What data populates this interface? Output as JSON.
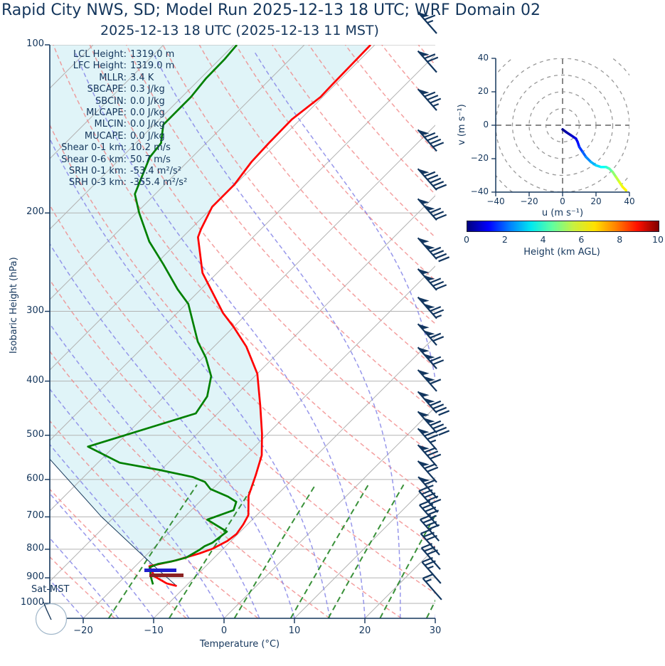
{
  "title": "Rapid City NWS, SD; Model Run 2025-12-13 18 UTC; WRF Domain 02",
  "subtitle": "2025-12-13 18 UTC  (2025-12-13 11 MST)",
  "colors": {
    "text": "#14365c",
    "axis": "#14365c",
    "temperature": "#ff0000",
    "dewpoint": "#008000",
    "parcel": "#1a3a5c",
    "cin_shade": "#e0f4f8",
    "isobar": "#b3b3b3",
    "isotherm": "#b3b3b3",
    "dry_adiabat": "#f08080",
    "moist_adiabat": "#8585e8",
    "mixing_ratio": "#2e8b2e",
    "wind_barb": "#12365f",
    "lcl_bar": "#2020cc",
    "lfc_bar": "#8b2121",
    "hodo_grid": "#999999",
    "circle_edge": "#9fb6c9"
  },
  "skewt": {
    "xlabel": "Temperature (°C)",
    "ylabel": "Isobaric Height (hPa)",
    "x_ticks": [
      -20,
      -10,
      0,
      10,
      20,
      30
    ],
    "pressure_ticks": [
      100,
      200,
      300,
      400,
      500,
      600,
      700,
      800,
      900,
      1000
    ],
    "surface_time_label": "Sat-MST"
  },
  "stats": [
    {
      "label": "LCL Height:",
      "value": "1319.0 m"
    },
    {
      "label": "LFC Height:",
      "value": "1319.0 m"
    },
    {
      "label": "MLLR:",
      "value": "3.4 K"
    },
    {
      "label": "SBCAPE:",
      "value": "0.3 J/kg"
    },
    {
      "label": "SBCIN:",
      "value": "0.0 J/kg"
    },
    {
      "label": "MLCAPE:",
      "value": "0.0 J/kg"
    },
    {
      "label": "MLCIN:",
      "value": "0.0 J/kg"
    },
    {
      "label": "MUCAPE:",
      "value": "0.0 J/kg"
    },
    {
      "label": "Shear 0-1 km:",
      "value": "10.2 m/s"
    },
    {
      "label": "Shear 0-6 km:",
      "value": "50.7 m/s"
    },
    {
      "label": "SRH 0-1 km:",
      "value": "-53.4 m²/s²"
    },
    {
      "label": "SRH 0-3 km:",
      "value": "-355.4 m²/s²"
    }
  ],
  "chart_data": {
    "type": "line",
    "chart_kind": "skew-T log-p sounding with hodograph inset",
    "pressure_axis_hpa": {
      "top": 100,
      "bottom": 1063,
      "ticks": [
        100,
        200,
        300,
        400,
        500,
        600,
        700,
        800,
        900,
        1000
      ]
    },
    "temperature_axis_c": {
      "min": -24.8,
      "max": 30,
      "ticks": [
        -20,
        -10,
        0,
        10,
        20,
        30
      ]
    },
    "temperature_profile_p_t": [
      [
        100,
        -60.6
      ],
      [
        118,
        -60.4
      ],
      [
        124,
        -60.3
      ],
      [
        136,
        -61.2
      ],
      [
        150,
        -61.1
      ],
      [
        162,
        -60.9
      ],
      [
        178,
        -60.1
      ],
      [
        195,
        -60.1
      ],
      [
        214,
        -58.5
      ],
      [
        221,
        -57.8
      ],
      [
        256,
        -52.1
      ],
      [
        302,
        -43.5
      ],
      [
        320,
        -40.0
      ],
      [
        347,
        -35.4
      ],
      [
        388,
        -30.0
      ],
      [
        442,
        -25.1
      ],
      [
        497,
        -20.8
      ],
      [
        543,
        -17.8
      ],
      [
        590,
        -15.8
      ],
      [
        642,
        -13.9
      ],
      [
        695,
        -11.2
      ],
      [
        722,
        -10.6
      ],
      [
        751,
        -10.2
      ],
      [
        773,
        -10.5
      ],
      [
        798,
        -11.5
      ],
      [
        814,
        -12.7
      ],
      [
        838,
        -15.1
      ],
      [
        851,
        -17.0
      ],
      [
        858,
        -18.0
      ],
      [
        895,
        -15.8
      ],
      [
        921,
        -13.1
      ],
      [
        931,
        -11.3
      ]
    ],
    "dewpoint_profile_p_t": [
      [
        100,
        -79.6
      ],
      [
        106,
        -79.3
      ],
      [
        115,
        -79.2
      ],
      [
        124,
        -78.7
      ],
      [
        139,
        -78.7
      ],
      [
        150,
        -76.4
      ],
      [
        159,
        -76.0
      ],
      [
        185,
        -72.9
      ],
      [
        200,
        -69.6
      ],
      [
        225,
        -64.1
      ],
      [
        247,
        -58.9
      ],
      [
        274,
        -53.3
      ],
      [
        291,
        -49.7
      ],
      [
        340,
        -43.0
      ],
      [
        363,
        -39.6
      ],
      [
        392,
        -36.2
      ],
      [
        426,
        -33.9
      ],
      [
        457,
        -33.1
      ],
      [
        524,
        -43.7
      ],
      [
        560,
        -36.9
      ],
      [
        577,
        -30.2
      ],
      [
        594,
        -24.5
      ],
      [
        606,
        -22.1
      ],
      [
        624,
        -20.3
      ],
      [
        644,
        -16.7
      ],
      [
        658,
        -14.8
      ],
      [
        681,
        -14.0
      ],
      [
        708,
        -16.4
      ],
      [
        744,
        -11.9
      ],
      [
        779,
        -12.4
      ],
      [
        790,
        -13.0
      ],
      [
        801,
        -13.2
      ],
      [
        828,
        -14.0
      ],
      [
        841,
        -15.5
      ],
      [
        850,
        -17.1
      ],
      [
        862,
        -17.8
      ],
      [
        900,
        -16.1
      ],
      [
        925,
        -14.9
      ]
    ],
    "parcel_profile_p_t": [
      [
        931,
        -11.3
      ],
      [
        858,
        -17.3
      ],
      [
        700,
        -31.8
      ],
      [
        493,
        -54.7
      ],
      [
        300,
        -83.6
      ],
      [
        200,
        -104.3
      ],
      [
        100,
        -134.6
      ]
    ],
    "level_markers": [
      {
        "name": "lcl-bar",
        "x1": 203,
        "x2": 248,
        "y": 799,
        "h": 5,
        "color_key": "lcl_bar"
      },
      {
        "name": "lfc-bar",
        "x1": 210,
        "x2": 258,
        "y": 806,
        "h": 5,
        "color_key": "lfc_bar"
      }
    ],
    "mixing_ratio_lines_g_kg": [
      1,
      2,
      4,
      7,
      10,
      16,
      24,
      32
    ],
    "wind_barbs": [
      {
        "p": 95,
        "flags": 1,
        "full": 1,
        "half": 1
      },
      {
        "p": 112,
        "flags": 1,
        "full": 2,
        "half": 0
      },
      {
        "p": 131,
        "flags": 1,
        "full": 3,
        "half": 1
      },
      {
        "p": 155,
        "flags": 1,
        "full": 4,
        "half": 0
      },
      {
        "p": 182,
        "flags": 1,
        "full": 5,
        "half": 0
      },
      {
        "p": 206,
        "flags": 2,
        "full": 3,
        "half": 0
      },
      {
        "p": 242,
        "flags": 2,
        "full": 4,
        "half": 0
      },
      {
        "p": 275,
        "flags": 2,
        "full": 3,
        "half": 0
      },
      {
        "p": 309,
        "flags": 2,
        "full": 2,
        "half": 1
      },
      {
        "p": 345,
        "flags": 2,
        "full": 2,
        "half": 0
      },
      {
        "p": 380,
        "flags": 2,
        "full": 2,
        "half": 0
      },
      {
        "p": 417,
        "flags": 2,
        "full": 1,
        "half": 0
      },
      {
        "p": 456,
        "flags": 2,
        "full": 4,
        "half": 0
      },
      {
        "p": 495,
        "flags": 2,
        "full": 4,
        "half": 0
      },
      {
        "p": 531,
        "flags": 1,
        "full": 2,
        "half": 1
      },
      {
        "p": 568,
        "flags": 1,
        "full": 3,
        "half": 0
      },
      {
        "p": 607,
        "flags": 1,
        "full": 2,
        "half": 0
      },
      {
        "p": 648,
        "flags": 1,
        "full": 1,
        "half": 1
      },
      {
        "p": 687,
        "flags": 0,
        "full": 5,
        "half": 0
      },
      {
        "p": 728,
        "flags": 0,
        "full": 4,
        "half": 1
      },
      {
        "p": 773,
        "flags": 0,
        "full": 4,
        "half": 0
      },
      {
        "p": 819,
        "flags": 0,
        "full": 3,
        "half": 0
      },
      {
        "p": 869,
        "flags": 0,
        "full": 3,
        "half": 0
      },
      {
        "p": 921,
        "flags": 0,
        "full": 2,
        "half": 1
      },
      {
        "p": 985,
        "flags": 0,
        "full": 1,
        "half": 1
      }
    ],
    "hodograph": {
      "xlabel": "u (m s⁻¹)",
      "ylabel": "v (m s⁻¹)",
      "ticks": [
        -40,
        -20,
        0,
        20,
        40
      ],
      "ring_radii": [
        10,
        20,
        30,
        40,
        50
      ],
      "trace_u": [
        0,
        2,
        5,
        8,
        9,
        10,
        12,
        14,
        17,
        20,
        23,
        26,
        28,
        30,
        32,
        34,
        36,
        38
      ],
      "trace_v": [
        -2.5,
        -4,
        -6,
        -8,
        -10,
        -13,
        -16,
        -19,
        -22,
        -24,
        -25,
        -25,
        -26,
        -28,
        -31,
        -34,
        -37,
        -39
      ],
      "trace_height_km": [
        0,
        0.3,
        0.6,
        0.9,
        1.2,
        1.6,
        2.0,
        2.4,
        2.8,
        3.2,
        3.6,
        4.0,
        4.4,
        4.9,
        5.4,
        5.8,
        6.2,
        6.5
      ]
    },
    "colorbar": {
      "label": "Height (km AGL)",
      "ticks": [
        0,
        2,
        4,
        6,
        8,
        10
      ],
      "min": 0,
      "max": 10,
      "colormap": "jet"
    }
  }
}
